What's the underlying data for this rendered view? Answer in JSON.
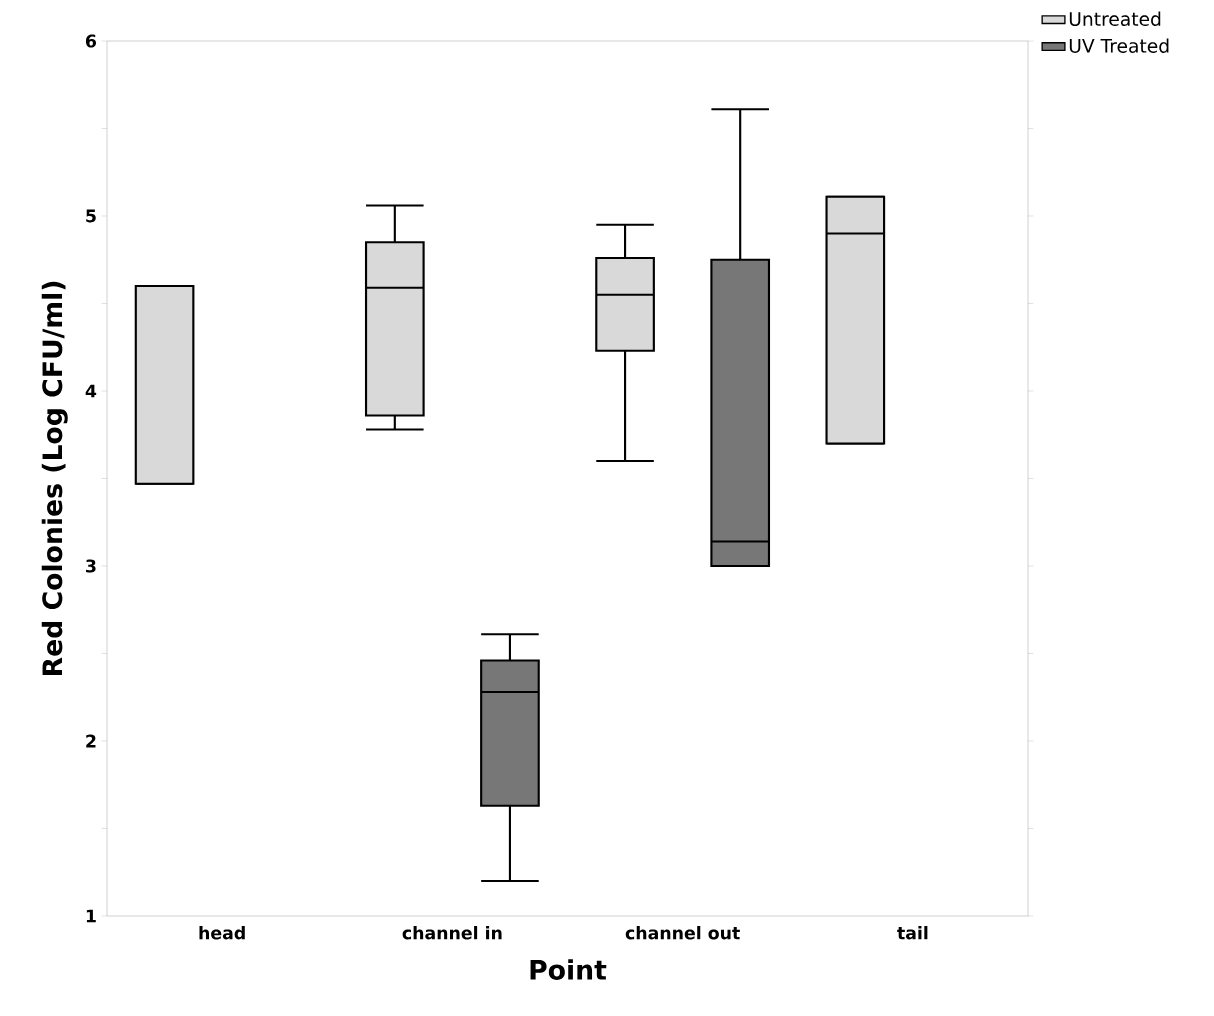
{
  "chart_data": {
    "type": "box",
    "xlabel": "Point",
    "ylabel": "Red Colonies (Log CFU/ml)",
    "categories": [
      "head",
      "channel in",
      "channel out",
      "tail"
    ],
    "series": [
      {
        "name": "Untreated",
        "color": "#d9d9d9",
        "boxes": [
          {
            "low": 3.47,
            "q1": 3.47,
            "median": 4.6,
            "q3": 4.6,
            "high": 4.6
          },
          {
            "low": 3.78,
            "q1": 3.86,
            "median": 4.59,
            "q3": 4.85,
            "high": 5.06
          },
          {
            "low": 3.6,
            "q1": 4.23,
            "median": 4.55,
            "q3": 4.76,
            "high": 4.95
          },
          {
            "low": 3.7,
            "q1": 3.7,
            "median": 4.9,
            "q3": 5.11,
            "high": 5.11
          }
        ]
      },
      {
        "name": "UV Treated",
        "color": "#777777",
        "boxes": [
          null,
          {
            "low": 1.2,
            "q1": 1.63,
            "median": 2.28,
            "q3": 2.46,
            "high": 2.61
          },
          {
            "low": 3.0,
            "q1": 3.0,
            "median": 3.14,
            "q3": 4.75,
            "high": 5.61
          },
          null
        ]
      }
    ],
    "ylim": [
      1,
      6
    ],
    "yticks": [
      1,
      {
        "value": 1.5,
        "label": null
      },
      2,
      {
        "value": 2.5,
        "label": null
      },
      3,
      {
        "value": 3.5,
        "label": null
      },
      4,
      {
        "value": 4.5,
        "label": null
      },
      5,
      {
        "value": 5.5,
        "label": null
      },
      6
    ],
    "grid": false,
    "legend": "top right"
  }
}
